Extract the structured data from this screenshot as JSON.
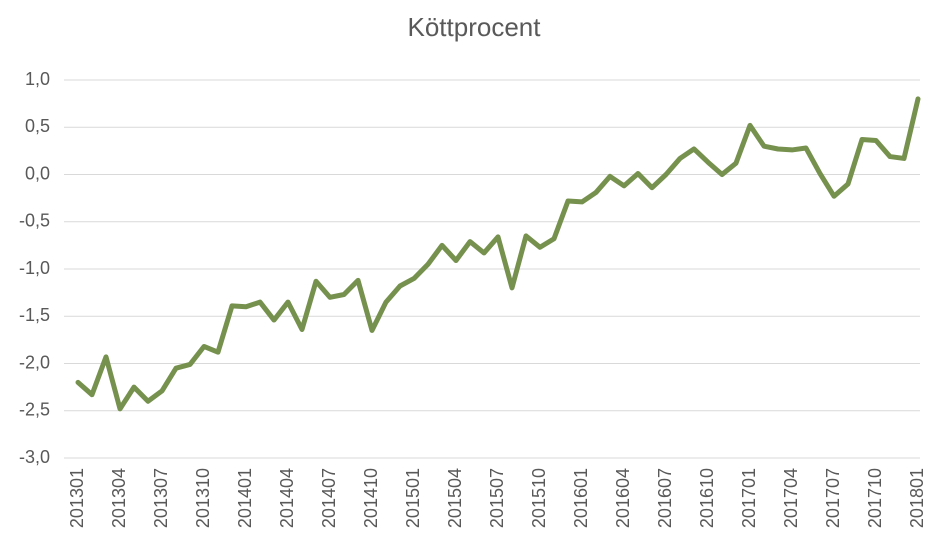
{
  "chart_data": {
    "type": "line",
    "title": "Köttprocent",
    "categories": [
      "201301",
      null,
      null,
      "201304",
      null,
      null,
      "201307",
      null,
      null,
      "201310",
      null,
      null,
      "201401",
      null,
      null,
      "201404",
      null,
      null,
      "201407",
      null,
      null,
      "201410",
      null,
      null,
      "201501",
      null,
      null,
      "201504",
      null,
      null,
      "201507",
      null,
      null,
      "201510",
      null,
      null,
      "201601",
      null,
      null,
      "201604",
      null,
      null,
      "201607",
      null,
      null,
      "201610",
      null,
      null,
      "201701",
      null,
      null,
      "201704",
      null,
      null,
      "201707",
      null,
      null,
      "201710",
      null,
      null,
      "201801"
    ],
    "series": [
      {
        "name": "Köttprocent",
        "color": "#76914e",
        "values": [
          -2.2,
          -2.33,
          -1.93,
          -2.48,
          -2.25,
          -2.4,
          -2.29,
          -2.05,
          -2.01,
          -1.82,
          -1.88,
          -1.39,
          -1.4,
          -1.35,
          -1.54,
          -1.35,
          -1.64,
          -1.13,
          -1.3,
          -1.27,
          -1.12,
          -1.65,
          -1.35,
          -1.18,
          -1.1,
          -0.95,
          -0.75,
          -0.91,
          -0.71,
          -0.83,
          -0.66,
          -1.2,
          -0.65,
          -0.77,
          -0.68,
          -0.28,
          -0.29,
          -0.19,
          -0.02,
          -0.12,
          0.01,
          -0.14,
          0.0,
          0.17,
          0.27,
          0.13,
          0.0,
          0.12,
          0.52,
          0.3,
          0.27,
          0.26,
          0.28,
          0.01,
          -0.23,
          -0.1,
          0.37,
          0.36,
          0.19,
          0.17,
          0.8
        ]
      }
    ],
    "ylim": [
      -3,
      1
    ],
    "yticks": [
      {
        "value": -3,
        "label": "-3,0"
      },
      {
        "value": -2.5,
        "label": "-2,5"
      },
      {
        "value": -2,
        "label": "-2,0"
      },
      {
        "value": -1.5,
        "label": "-1,5"
      },
      {
        "value": -1,
        "label": "-1,0"
      },
      {
        "value": -0.5,
        "label": "-0,5"
      },
      {
        "value": 0,
        "label": "0,0"
      },
      {
        "value": 0.5,
        "label": "0,5"
      },
      {
        "value": 1,
        "label": "1,0"
      }
    ],
    "grid": true
  }
}
